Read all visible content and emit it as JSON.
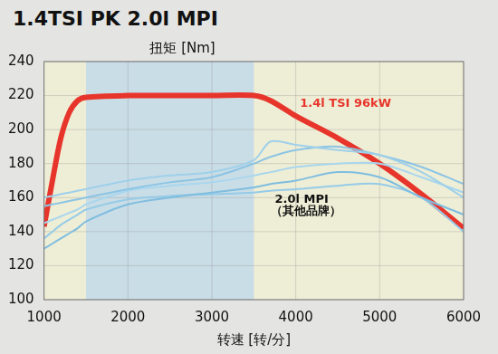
{
  "chart_data": {
    "type": "line",
    "title": "1.4TSI PK 2.0l MPI",
    "y_label": "扭矩 [Nm]",
    "x_label": "转速 [转/分]",
    "x": [
      1000,
      1100,
      1200,
      1300,
      1400,
      1500,
      2000,
      2500,
      3000,
      3500,
      3700,
      4000,
      4500,
      5000,
      5500,
      6000
    ],
    "series": [
      {
        "color": "#9fd0ea",
        "values": [
          160,
          161,
          162,
          163,
          164,
          165,
          170,
          173,
          175,
          182,
          193,
          191,
          188,
          185,
          175,
          160
        ]
      },
      {
        "color": "#8cc4e4",
        "values": [
          155,
          156,
          157,
          158,
          159,
          160,
          165,
          169,
          172,
          180,
          184,
          188,
          190,
          185,
          178,
          168
        ]
      },
      {
        "color": "#a8d6ee",
        "values": [
          145,
          147,
          149,
          151,
          153,
          156,
          164,
          167,
          169,
          173,
          175,
          178,
          180,
          180,
          172,
          163
        ]
      },
      {
        "color": "#7fbde0",
        "values": [
          130,
          133,
          136,
          139,
          142,
          146,
          156,
          160,
          163,
          166,
          168,
          170,
          175,
          172,
          160,
          150
        ]
      },
      {
        "color": "#96cbe8",
        "values": [
          136,
          140,
          144,
          147,
          150,
          153,
          159,
          161,
          162,
          163,
          164,
          165,
          167,
          168,
          160,
          140
        ]
      },
      {
        "color": "#e8352b",
        "values": [
          143,
          170,
          195,
          210,
          217,
          219,
          220,
          220,
          220,
          220,
          217,
          208,
          195,
          180,
          162,
          142
        ]
      }
    ],
    "shaded_range": [
      1500,
      3500
    ],
    "annotations": [
      {
        "text": "1.4l TSI 96kW",
        "x": 4050,
        "y": 215,
        "color": "#e8352b"
      },
      {
        "text": "2.0l MPI",
        "x": 3750,
        "y": 159,
        "color": "#111111"
      },
      {
        "text": "（其他品牌）",
        "x": 3700,
        "y": 152,
        "color": "#111111"
      }
    ],
    "xlim": [
      1000,
      6000
    ],
    "xticks": [
      1000,
      2000,
      3000,
      4000,
      5000,
      6000
    ],
    "ylim": [
      100,
      240
    ],
    "yticks": [
      100,
      120,
      140,
      160,
      180,
      200,
      220,
      240
    ],
    "grid": true
  }
}
